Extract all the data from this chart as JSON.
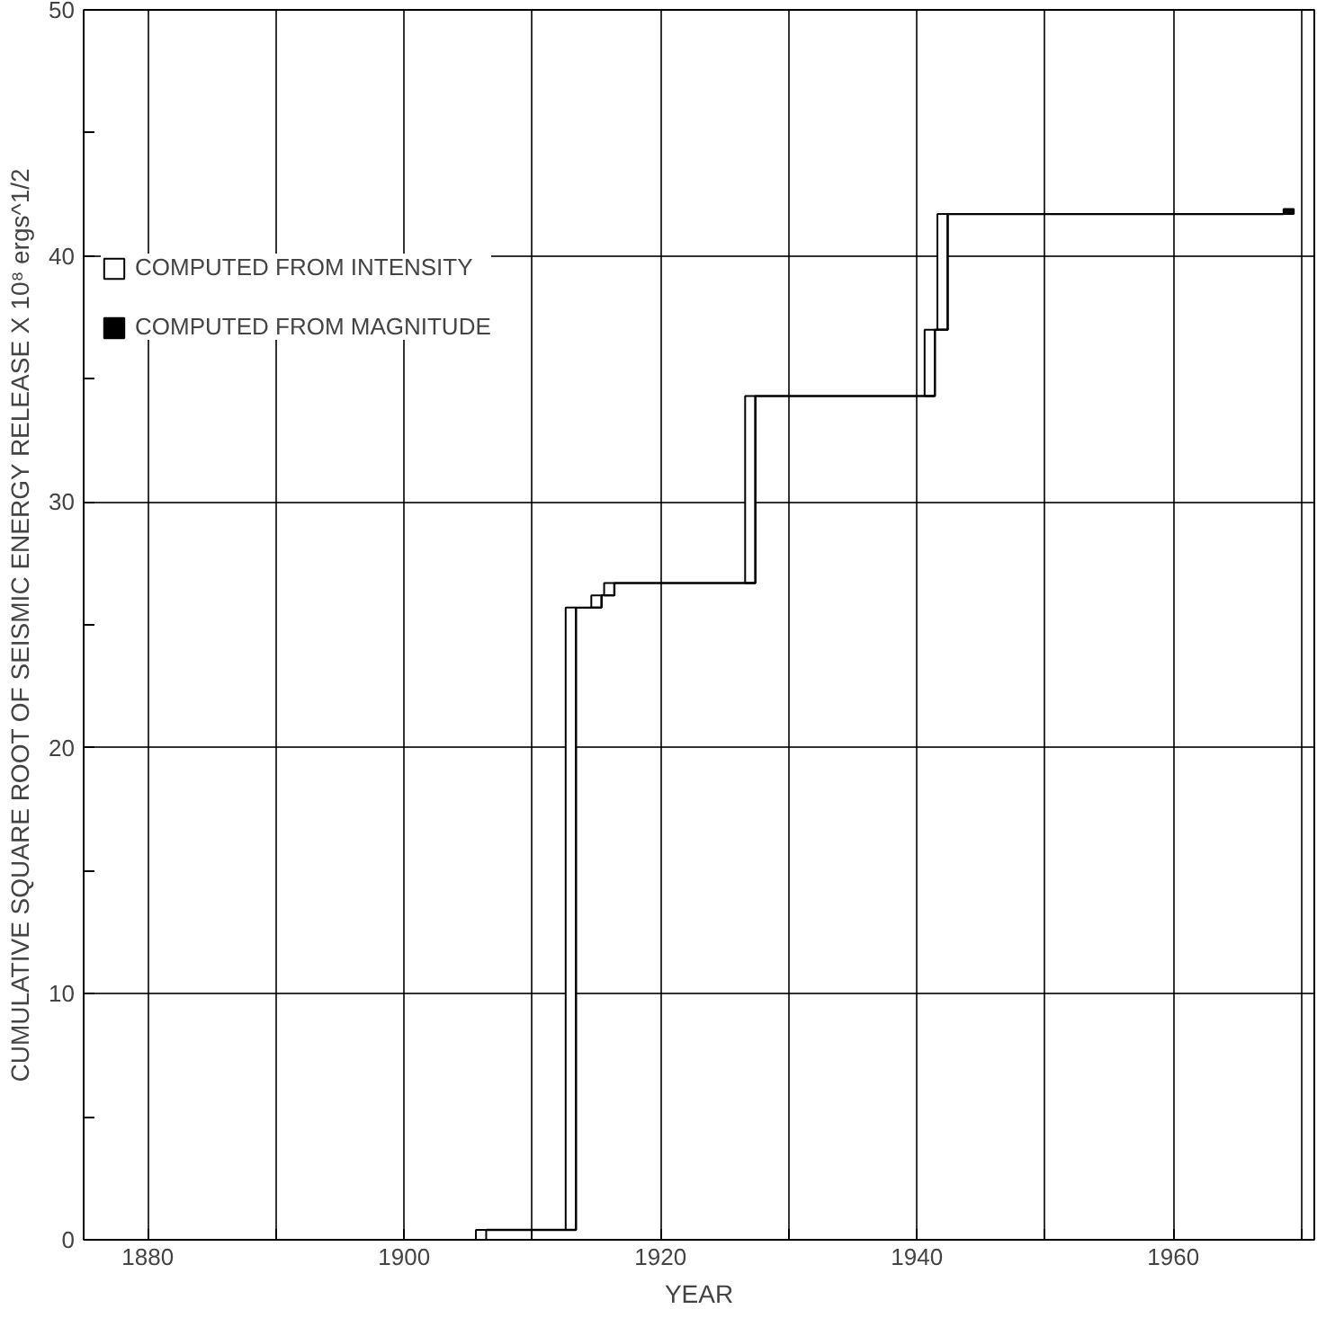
{
  "chart_data": {
    "type": "bar",
    "xlabel": "YEAR",
    "ylabel": "CUMULATIVE SQUARE ROOT OF SEISMIC ENERGY RELEASE X 10⁸ ergs^1/2",
    "xlim": [
      1875,
      1971
    ],
    "ylim": [
      0,
      50
    ],
    "xticks": [
      1880,
      {
        "value": 1890,
        "label": null
      },
      1900,
      {
        "value": 1910,
        "label": null
      },
      1920,
      {
        "value": 1930,
        "label": null
      },
      1940,
      {
        "value": 1950,
        "label": null
      },
      1960,
      {
        "value": 1970,
        "label": null
      }
    ],
    "yticks": [
      0,
      {
        "value": 5,
        "label": null
      },
      10,
      {
        "value": 15,
        "label": null
      },
      20,
      {
        "value": 25,
        "label": null
      },
      30,
      {
        "value": 35,
        "label": null
      },
      40,
      {
        "value": 45,
        "label": null
      },
      50
    ],
    "grid": true,
    "legend": "top left",
    "series": [
      {
        "name": "COMPUTED FROM INTENSITY",
        "color": "#ffffff",
        "x": [
          1906,
          1913,
          1915,
          1916,
          1927,
          1941,
          1942
        ],
        "base": [
          0,
          0.4,
          25.7,
          26.2,
          26.7,
          34.3,
          37.0
        ],
        "values": [
          0.4,
          25.3,
          0.5,
          0.5,
          7.6,
          2.7,
          4.7
        ]
      },
      {
        "name": "COMPUTED FROM MAGNITUDE",
        "color": "#000000",
        "x": [
          1969
        ],
        "base": [
          41.7
        ],
        "values": [
          0.2
        ]
      },
      {
        "type": "step",
        "color": "#000000",
        "x": [
          1906.4,
          1913.4,
          1915.4,
          1916.4,
          1927.4,
          1941.4,
          1942.4,
          1968.6
        ],
        "values": [
          0.4,
          25.7,
          26.2,
          26.7,
          34.3,
          37.0,
          41.7,
          41.7
        ]
      }
    ]
  }
}
